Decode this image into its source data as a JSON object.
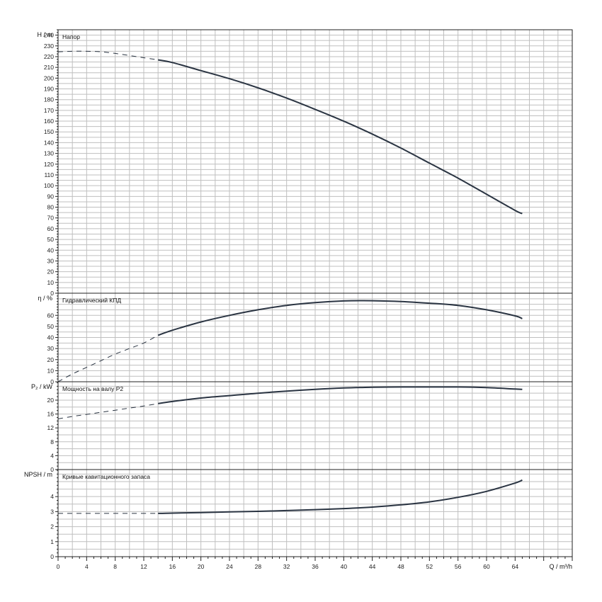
{
  "chart_data": {
    "type": "line",
    "x_axis": {
      "label": "Q / m³/h",
      "range": [
        0,
        72
      ],
      "ticks": [
        0,
        4,
        8,
        12,
        16,
        20,
        24,
        28,
        32,
        36,
        40,
        44,
        48,
        52,
        56,
        60,
        64
      ]
    },
    "panels": [
      {
        "id": "head",
        "title": "Напор",
        "ylabel": "H / m",
        "ylim": [
          0,
          245
        ],
        "yticks": [
          0,
          5,
          10,
          15,
          20,
          25,
          30,
          35,
          40,
          45,
          50,
          55,
          60,
          65,
          70,
          75,
          80,
          85,
          90,
          95,
          100,
          105,
          110,
          115,
          120,
          125,
          130,
          135,
          140,
          145,
          150,
          155,
          160,
          165,
          170,
          175,
          180,
          185,
          190,
          195,
          200,
          205,
          210,
          215,
          220,
          225,
          230,
          235,
          240
        ],
        "ytick_labels": [
          0,
          10,
          20,
          30,
          40,
          50,
          60,
          70,
          80,
          90,
          100,
          110,
          120,
          130,
          140,
          150,
          160,
          170,
          180,
          190,
          200,
          210,
          220,
          230,
          240
        ],
        "series": [
          {
            "style": "dashed",
            "x": [
              0,
              2,
              4,
              6,
              8,
              10,
              12,
              14
            ],
            "y": [
              224.5,
              225,
              225,
              224.5,
              223,
              221,
              219,
              217
            ]
          },
          {
            "style": "solid",
            "x": [
              14,
              16,
              20,
              24,
              28,
              32,
              36,
              40,
              44,
              48,
              52,
              56,
              60,
              64,
              65
            ],
            "y": [
              217,
              214.5,
              207,
              199.5,
              191,
              181.5,
              171,
              160,
              148,
              135,
              121,
              107,
              92,
              77,
              74
            ]
          }
        ]
      },
      {
        "id": "efficiency",
        "title": "Гидравлический КПД",
        "ylabel": "η / %",
        "ylim": [
          0,
          80
        ],
        "yticks": [
          0,
          5,
          10,
          15,
          20,
          25,
          30,
          35,
          40,
          45,
          50,
          55,
          60,
          65,
          70,
          75
        ],
        "ytick_labels": [
          0,
          10,
          20,
          30,
          40,
          50,
          60
        ],
        "series": [
          {
            "style": "dashed",
            "x": [
              0,
              2,
              4,
              6,
              8,
              10,
              12,
              14
            ],
            "y": [
              0,
              7,
              13,
              19,
              25,
              30,
              35,
              42
            ]
          },
          {
            "style": "solid",
            "x": [
              14,
              16,
              20,
              24,
              28,
              32,
              36,
              40,
              44,
              48,
              52,
              56,
              60,
              64,
              65
            ],
            "y": [
              42,
              46.5,
              54,
              60,
              65,
              69,
              71.5,
              73,
              73.2,
              72.5,
              71,
              69,
              65,
              59.5,
              57
            ]
          }
        ]
      },
      {
        "id": "power",
        "title": "Мощность на валу P2",
        "ylabel": "P₂ / kW",
        "ylim": [
          0,
          25.3
        ],
        "yticks": [
          0,
          2,
          4,
          6,
          8,
          10,
          12,
          14,
          16,
          18,
          20,
          22,
          24
        ],
        "ytick_labels": [
          0,
          4,
          8,
          12,
          16,
          20
        ],
        "series": [
          {
            "style": "dashed",
            "x": [
              0,
              2,
              4,
              6,
              8,
              10,
              12,
              14
            ],
            "y": [
              14.6,
              15.3,
              15.9,
              16.5,
              17.1,
              17.7,
              18.3,
              19.0
            ]
          },
          {
            "style": "solid",
            "x": [
              14,
              16,
              20,
              24,
              28,
              32,
              36,
              40,
              44,
              48,
              52,
              56,
              60,
              64,
              65
            ],
            "y": [
              19.0,
              19.6,
              20.6,
              21.3,
              22.0,
              22.6,
              23.1,
              23.5,
              23.7,
              23.8,
              23.8,
              23.8,
              23.6,
              23.2,
              23.1
            ]
          }
        ]
      },
      {
        "id": "npsh",
        "title": "Кривые кавитационного запаса",
        "ylabel": "NPSH / m",
        "ylim": [
          0,
          5.8
        ],
        "yticks": [
          0,
          0.5,
          1,
          1.5,
          2,
          2.5,
          3,
          3.5,
          4,
          4.5,
          5,
          5.5
        ],
        "ytick_labels": [
          0,
          1,
          2,
          3,
          4
        ],
        "series": [
          {
            "style": "dashed",
            "x": [
              0,
              4,
              8,
              12,
              14
            ],
            "y": [
              2.88,
              2.88,
              2.88,
              2.88,
              2.88
            ]
          },
          {
            "style": "solid",
            "x": [
              14,
              16,
              20,
              24,
              28,
              32,
              36,
              40,
              44,
              48,
              52,
              56,
              60,
              64,
              65
            ],
            "y": [
              2.88,
              2.9,
              2.94,
              2.98,
              3.02,
              3.07,
              3.13,
              3.2,
              3.3,
              3.45,
              3.65,
              3.95,
              4.35,
              4.9,
              5.1
            ]
          }
        ]
      }
    ]
  }
}
